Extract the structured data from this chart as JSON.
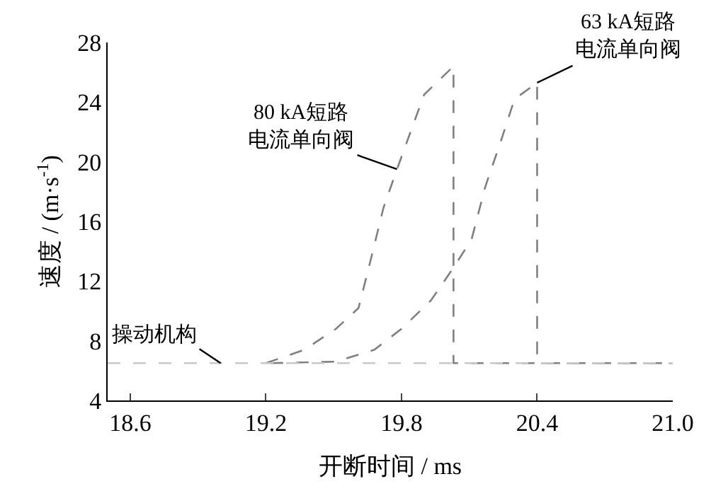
{
  "chart_data": {
    "type": "line",
    "xlabel": "开断时间 / ms",
    "ylabel": "速度 / (m·s$^{-1}$)",
    "xlim": [
      18.5,
      21.0
    ],
    "xticks": [
      18.6,
      19.2,
      19.8,
      20.4,
      {
        "value": 21.0,
        "label": "21.0"
      }
    ],
    "ylim": [
      4,
      28
    ],
    "yticks": [
      4,
      8,
      12,
      16,
      20,
      24,
      28
    ],
    "legend": false,
    "line_style": "dashed",
    "marker": "none",
    "series": [
      {
        "name": "80 kA短路电流单向阀",
        "color": "#808080",
        "x": [
          19.2,
          19.37,
          19.51,
          19.61,
          19.66,
          19.72,
          19.78,
          19.84,
          19.9,
          20.03,
          20.03,
          21.0
        ],
        "values": [
          6.5,
          7.4,
          8.8,
          10.2,
          13.2,
          16.9,
          19.5,
          22.0,
          24.5,
          26.4,
          6.5,
          6.5
        ]
      },
      {
        "name": "63 kA短路电流单向阀",
        "color": "#808080",
        "x": [
          19.22,
          19.51,
          19.68,
          19.8,
          19.93,
          20.03,
          20.11,
          20.17,
          20.24,
          20.3,
          20.4,
          20.4,
          21.0
        ],
        "values": [
          6.5,
          6.6,
          7.4,
          8.8,
          10.7,
          12.9,
          14.8,
          18.3,
          21.4,
          24.2,
          25.3,
          6.5,
          6.5
        ]
      },
      {
        "name": "操动机构",
        "color": "#c8c8c8",
        "x": [
          18.5,
          19.0,
          21.0
        ],
        "values": [
          6.5,
          6.5,
          6.5
        ]
      }
    ]
  }
}
